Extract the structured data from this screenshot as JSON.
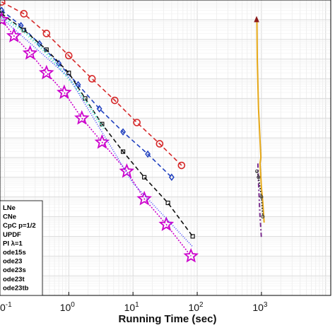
{
  "chart_data": {
    "type": "line",
    "xlabel": "Running Time (sec)",
    "ylabel": "",
    "title": "",
    "x_scale": "log",
    "xlim": [
      0.085,
      12000
    ],
    "y_scale": "log",
    "ylim": [
      1e-14,
      10.0
    ],
    "grid": true,
    "legend_position": "lower-left",
    "x_ticks": [
      {
        "value": 0.1,
        "base": "10",
        "exp": "-1"
      },
      {
        "value": 1,
        "base": "10",
        "exp": "0"
      },
      {
        "value": 10,
        "base": "10",
        "exp": "1"
      },
      {
        "value": 100,
        "base": "10",
        "exp": "2"
      },
      {
        "value": 1000,
        "base": "10",
        "exp": "3"
      }
    ],
    "legend": [
      {
        "label": "LNe"
      },
      {
        "label": "CNe"
      },
      {
        "label": "CpC p=1/2"
      },
      {
        "label": "UPDF"
      },
      {
        "label": "PI λ=1"
      },
      {
        "label": "ode15s"
      },
      {
        "label": "ode23"
      },
      {
        "label": "ode23s"
      },
      {
        "label": "ode23t"
      },
      {
        "label": "ode23tb"
      }
    ],
    "series": [
      {
        "color": "#d62728",
        "dash": "6,4",
        "marker": "circle",
        "x": [
          0.09,
          0.2,
          0.45,
          1.0,
          2.3,
          5.2,
          11.5,
          26,
          57
        ],
        "y": [
          8,
          2,
          0.2,
          0.015,
          0.001,
          8e-05,
          6e-06,
          5e-07,
          4e-08
        ]
      },
      {
        "color": "#1f3fbf",
        "dash": "6,4",
        "marker": "diamond",
        "x": [
          0.09,
          0.18,
          0.35,
          0.7,
          1.4,
          3.0,
          7.0,
          17,
          40
        ],
        "y": [
          3,
          0.5,
          0.06,
          0.006,
          0.0005,
          3e-05,
          2e-06,
          1.5e-07,
          1e-08
        ]
      },
      {
        "color": "#111111",
        "dash": "6,4",
        "marker": "square-small",
        "x": [
          0.09,
          0.2,
          0.45,
          1.0,
          1.8,
          3.3,
          7,
          15,
          35,
          85
        ],
        "y": [
          2,
          0.3,
          0.03,
          0.002,
          0.0001,
          5e-06,
          2e-07,
          1e-08,
          5e-10,
          1e-11
        ]
      },
      {
        "color": "#40e0c0",
        "dash": "1,3",
        "marker": "none",
        "width": 3.5,
        "x": [
          0.09,
          0.2,
          0.4,
          0.7,
          1.2,
          2,
          3.5
        ],
        "y": [
          1.5,
          0.25,
          0.03,
          0.004,
          0.0005,
          5e-05,
          3e-06
        ]
      },
      {
        "color": "#cc00cc",
        "dash": "2,2",
        "marker": "star",
        "x": [
          0.09,
          0.14,
          0.25,
          0.45,
          0.85,
          1.6,
          3.3,
          8,
          15,
          33,
          80
        ],
        "y": [
          1,
          0.15,
          0.02,
          0.002,
          0.0002,
          1e-05,
          6e-07,
          2e-08,
          8e-10,
          4e-11,
          1e-12
        ]
      },
      {
        "color": "#4444ff",
        "dash": "1,2",
        "marker": "none",
        "x": [
          0.09,
          1,
          10,
          85
        ],
        "y": [
          1.2,
          0.0012,
          5e-09,
          3e-12
        ]
      },
      {
        "color": "#e6a817",
        "dash": "",
        "marker": "none",
        "width": 2,
        "x": [
          850,
          860,
          900,
          980,
          950,
          1000,
          1050,
          1100
        ],
        "y": [
          1,
          0.01,
          3e-05,
          1e-07,
          5e-08,
          3e-09,
          5e-10,
          5e-11
        ]
      },
      {
        "color": "#7b2d8e",
        "dash": "6,3,2,3",
        "marker": "none",
        "width": 2,
        "x": [
          880,
          900,
          950,
          1000
        ],
        "y": [
          5e-08,
          5e-09,
          1e-10,
          8e-12
        ]
      },
      {
        "color": "#8b1a1a",
        "dash": "",
        "marker": "triangle",
        "x": [
          840
        ],
        "y": [
          1
        ]
      },
      {
        "color": "#333333",
        "dash": "2,2",
        "marker": "circle-small",
        "x": [
          850,
          900,
          1000,
          1050
        ],
        "y": [
          2e-08,
          1e-08,
          1e-09,
          1e-10
        ]
      }
    ]
  }
}
